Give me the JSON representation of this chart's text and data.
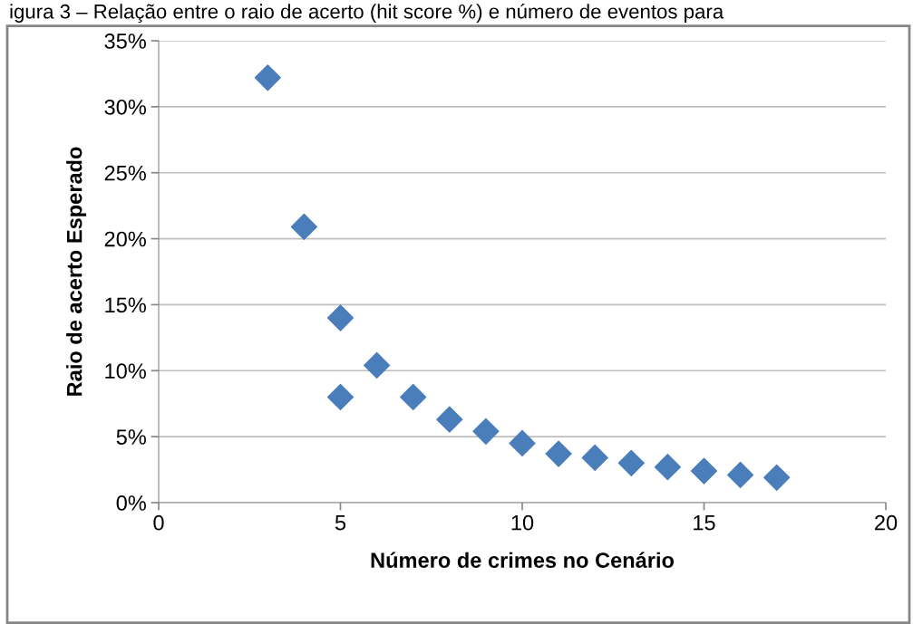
{
  "chart_data": {
    "type": "scatter",
    "xlabel": "Número de crimes no Cenário",
    "ylabel": "Raio de acerto Esperado",
    "annotations": [
      "igura 3 – Relação entre o raio de acerto (hit score %) e número de eventos para"
    ],
    "x": [
      3,
      4,
      5,
      5,
      6,
      7,
      8,
      9,
      10,
      11,
      12,
      13,
      14,
      15,
      16,
      17
    ],
    "series": [
      {
        "color": "#4a7ebb",
        "values": [
          32.2,
          20.9,
          14.0,
          8.0,
          10.4,
          8.0,
          6.3,
          5.4,
          4.5,
          3.7,
          3.4,
          3.0,
          2.7,
          2.4,
          2.1,
          1.9
        ]
      }
    ],
    "marker": "diamond",
    "grid": "y",
    "legend": false,
    "xlim": [
      0,
      20
    ],
    "xticks": [
      0,
      5,
      10,
      15,
      20
    ],
    "ylim": [
      0,
      35
    ],
    "yticks": [
      {
        "value": 0,
        "label": "0%"
      },
      {
        "value": 5,
        "label": "5%"
      },
      {
        "value": 10,
        "label": "10%"
      },
      {
        "value": 15,
        "label": "15%"
      },
      {
        "value": 20,
        "label": "20%"
      },
      {
        "value": 25,
        "label": "25%"
      },
      {
        "value": 30,
        "label": "30%"
      },
      {
        "value": 35,
        "label": "35%"
      }
    ]
  }
}
